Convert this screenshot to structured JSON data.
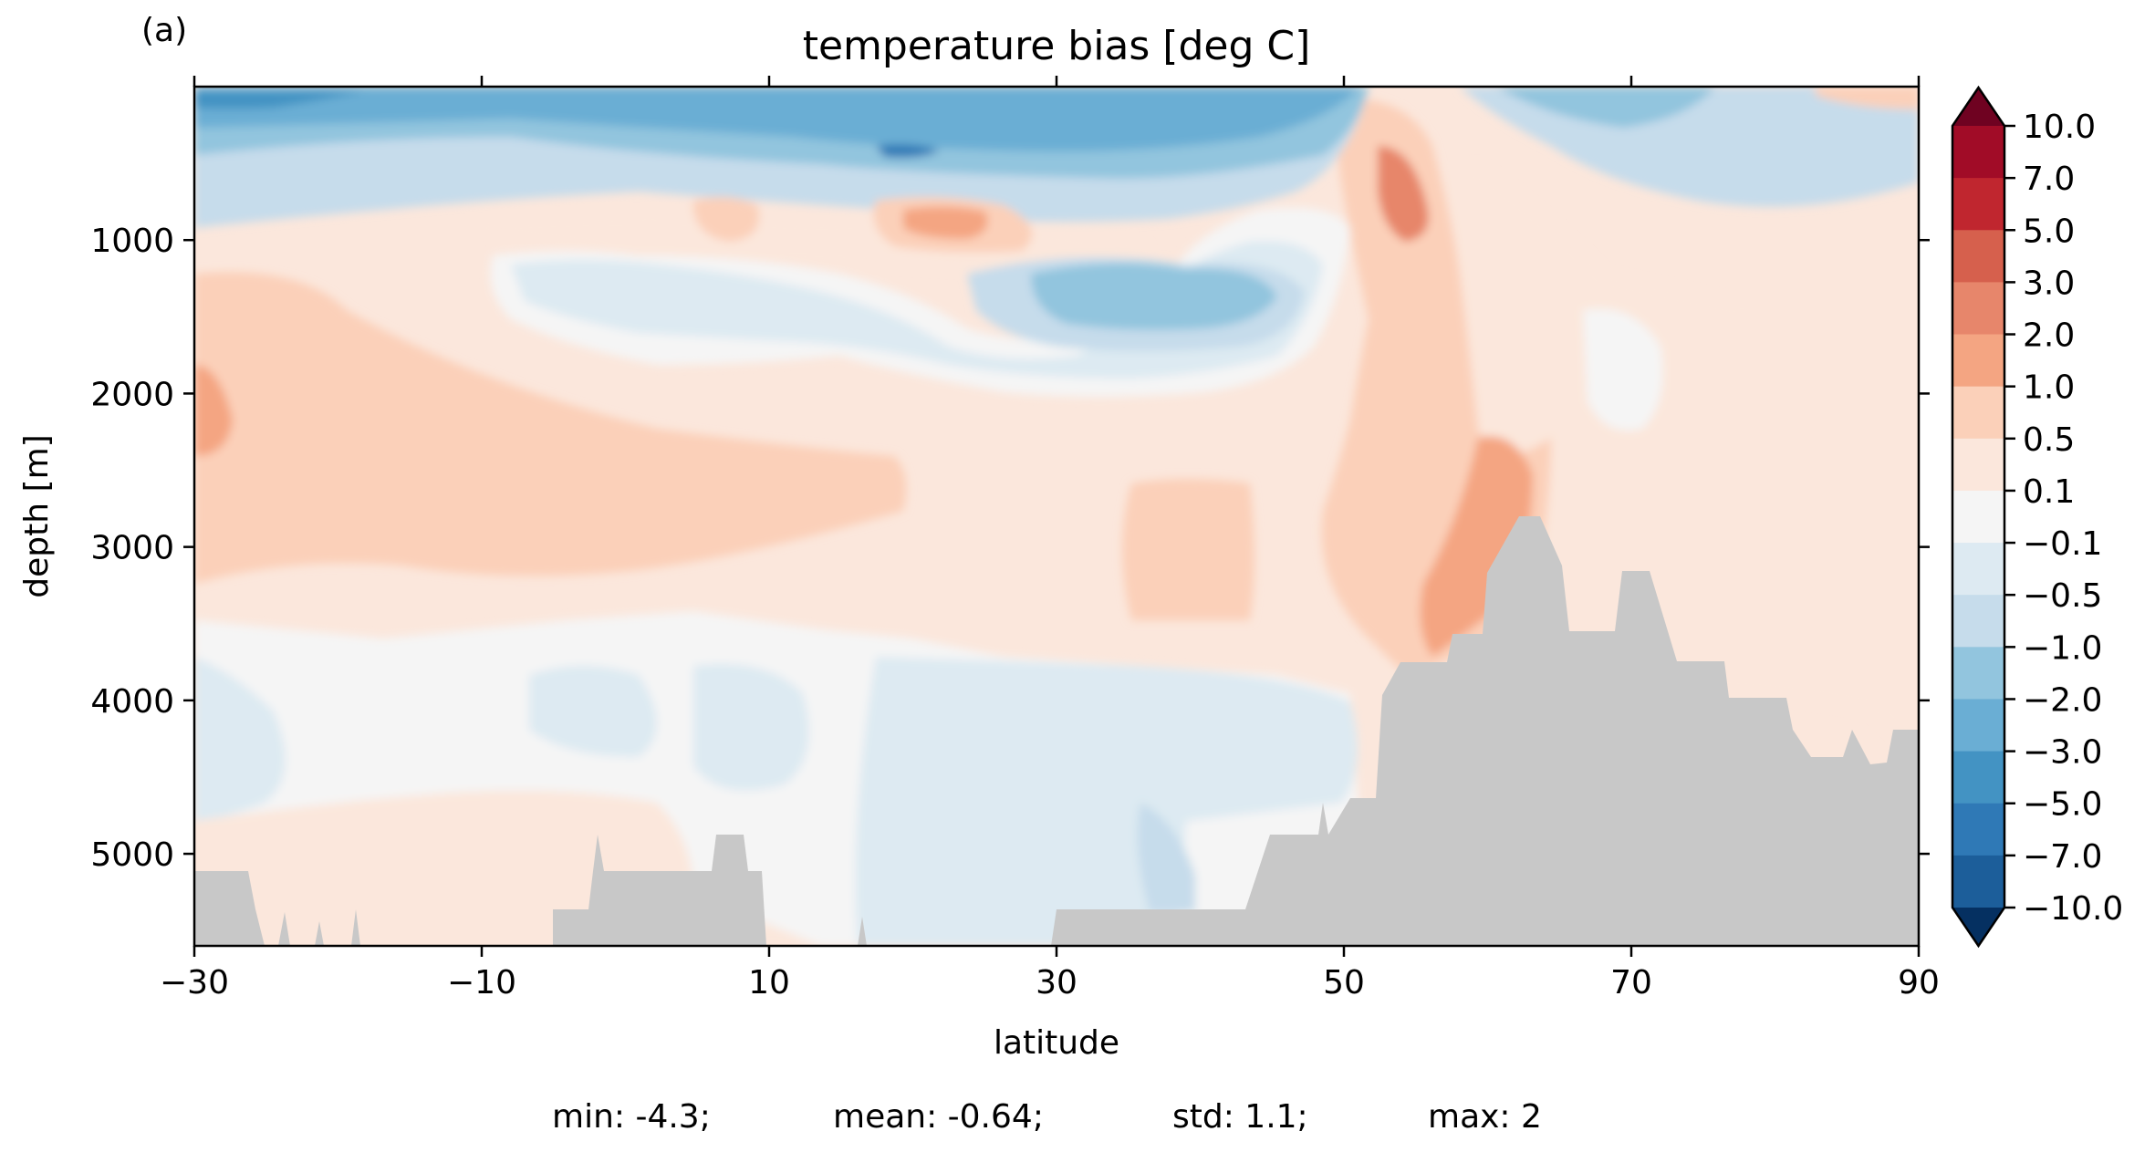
{
  "chart_data": {
    "type": "heatmap",
    "panel_label": "(a)",
    "title": "temperature bias [deg C]",
    "xlabel": "latitude",
    "ylabel": "depth [m]",
    "xlim": [
      -30,
      90
    ],
    "ylim": [
      5600,
      0
    ],
    "x_ticks": [
      -30,
      -10,
      10,
      30,
      50,
      70,
      90
    ],
    "x_tick_labels": [
      "−30",
      "−10",
      "10",
      "30",
      "50",
      "70",
      "90"
    ],
    "y_ticks": [
      1000,
      2000,
      3000,
      4000,
      5000
    ],
    "y_tick_labels": [
      "1000",
      "2000",
      "3000",
      "4000",
      "5000"
    ],
    "colorbar": {
      "extend": "both",
      "labels": [
        "10.0",
        "7.0",
        "5.0",
        "3.0",
        "2.0",
        "1.0",
        "0.5",
        "0.1",
        "−0.1",
        "−0.5",
        "−1.0",
        "−2.0",
        "−3.0",
        "−5.0",
        "−7.0",
        "−10.0"
      ],
      "colors_top_to_bottom": [
        "#a10c27",
        "#c0262f",
        "#d6604d",
        "#e7866b",
        "#f4a582",
        "#fbd0b9",
        "#fbe7dc",
        "#f5f5f5",
        "#ddeaf2",
        "#c6dceb",
        "#92c5de",
        "#6aaed4",
        "#4393c3",
        "#2f79b6",
        "#1c5e9a"
      ],
      "extend_top_color": "#6f0221",
      "extend_bottom_color": "#053061"
    },
    "topography_color": "#c8c8c8",
    "stats": {
      "min": "min: -4.3;",
      "mean": "mean: -0.64;",
      "std": "std: 1.1;",
      "max": "max: 2"
    }
  }
}
